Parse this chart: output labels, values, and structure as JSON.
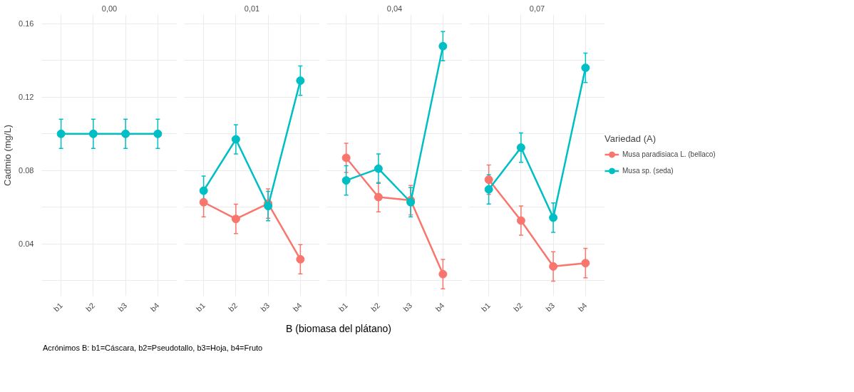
{
  "chart_data": [
    {
      "type": "line",
      "title": "0,00",
      "ylabel": "Cadmio (mg/L)",
      "categories": [
        "b1",
        "b2",
        "b3",
        "b4"
      ],
      "ylim": [
        0.0115,
        0.165
      ],
      "yticks": [
        {
          "value": 0.02,
          "label": null
        },
        0.04,
        {
          "value": 0.06,
          "label": null
        },
        0.08,
        {
          "value": 0.1,
          "label": null
        },
        0.12,
        {
          "value": 0.14,
          "label": null
        },
        0.16
      ],
      "grid": true,
      "marker": "circle",
      "line_style": "solid",
      "legend": false,
      "annotations": [
        "Acrónimos B: b1=Cáscara, b2=Pseudotallo, b3=Hoja, b4=Fruto"
      ],
      "series": [
        {
          "color": "#00bfc4",
          "values": [
            0.1,
            0.1,
            0.1,
            0.1
          ],
          "errors": [
            0.008,
            0.008,
            0.008,
            0.008
          ]
        }
      ]
    },
    {
      "type": "line",
      "title": "0,01",
      "xlabel": "B (biomasa del plátano)",
      "categories": [
        "b1",
        "b2",
        "b3",
        "b4"
      ],
      "ylim": [
        0.0115,
        0.165
      ],
      "yticks": [
        {
          "value": 0.02,
          "label": null
        },
        0.04,
        {
          "value": 0.06,
          "label": null
        },
        0.08,
        {
          "value": 0.1,
          "label": null
        },
        0.12,
        {
          "value": 0.14,
          "label": null
        },
        0.16
      ],
      "grid": true,
      "marker": "circle",
      "line_style": "solid",
      "legend": false,
      "tick_labels": "x",
      "series": [
        {
          "color": "#f8766d",
          "values": [
            0.0627,
            0.0536,
            0.062,
            0.0316
          ],
          "errors": [
            0.008,
            0.008,
            0.008,
            0.008
          ]
        },
        {
          "color": "#00bfc4",
          "values": [
            0.069,
            0.097,
            0.0606,
            0.129
          ],
          "errors": [
            0.008,
            0.008,
            0.008,
            0.008
          ]
        }
      ]
    },
    {
      "type": "line",
      "title": "0,04",
      "categories": [
        "b1",
        "b2",
        "b3",
        "b4"
      ],
      "ylim": [
        0.0115,
        0.165
      ],
      "yticks": [
        {
          "value": 0.02,
          "label": null
        },
        0.04,
        {
          "value": 0.06,
          "label": null
        },
        0.08,
        {
          "value": 0.1,
          "label": null
        },
        0.12,
        {
          "value": 0.14,
          "label": null
        },
        0.16
      ],
      "grid": true,
      "marker": "circle",
      "line_style": "solid",
      "legend": false,
      "tick_labels": "x",
      "series": [
        {
          "color": "#f8766d",
          "values": [
            0.0869,
            0.0655,
            0.0638,
            0.0235
          ],
          "errors": [
            0.008,
            0.008,
            0.008,
            0.008
          ]
        },
        {
          "color": "#00bfc4",
          "values": [
            0.0746,
            0.081,
            0.0627,
            0.1478
          ],
          "errors": [
            0.008,
            0.008,
            0.008,
            0.008
          ]
        }
      ]
    },
    {
      "type": "line",
      "title": "0,07",
      "legend_title": "Variedad (A)",
      "categories": [
        "b1",
        "b2",
        "b3",
        "b4"
      ],
      "ylim": [
        0.0115,
        0.165
      ],
      "yticks": [
        {
          "value": 0.02,
          "label": null
        },
        0.04,
        {
          "value": 0.06,
          "label": null
        },
        0.08,
        {
          "value": 0.1,
          "label": null
        },
        0.12,
        {
          "value": 0.14,
          "label": null
        },
        0.16
      ],
      "grid": true,
      "marker": "circle",
      "line_style": "solid",
      "legend": "right",
      "tick_labels": "x",
      "series": [
        {
          "name": "Musa paradisiaca L. (bellaco)",
          "color": "#f8766d",
          "values": [
            0.075,
            0.0527,
            0.0277,
            0.0295
          ],
          "errors": [
            0.008,
            0.008,
            0.008,
            0.008
          ]
        },
        {
          "name": "Musa sp. (seda)",
          "color": "#00bfc4",
          "values": [
            0.0697,
            0.0925,
            0.0543,
            0.136
          ],
          "errors": [
            0.008,
            0.008,
            0.008,
            0.008
          ]
        }
      ]
    }
  ]
}
